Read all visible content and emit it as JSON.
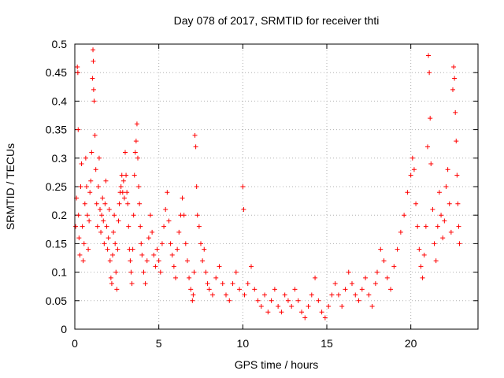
{
  "chart_data": {
    "type": "scatter",
    "title": "Day 078 of 2017, SRMTID for receiver thti",
    "xlabel": "GPS time / hours",
    "ylabel": "SRMTID / TECUs",
    "xlim": [
      0,
      24
    ],
    "ylim": [
      0,
      0.5
    ],
    "xticks": [
      0,
      5,
      10,
      15,
      20
    ],
    "yticks": [
      0,
      0.05,
      0.1,
      0.15,
      0.2,
      0.25,
      0.3,
      0.35,
      0.4,
      0.45,
      0.5
    ],
    "xtick_labels": [
      "0",
      "5",
      "10",
      "15",
      "20"
    ],
    "ytick_labels": [
      "0",
      "0.05",
      "0.1",
      "0.15",
      "0.2",
      "0.25",
      "0.3",
      "0.35",
      "0.4",
      "0.45",
      "0.5"
    ],
    "grid": true,
    "marker": "+",
    "color": "#ff0000",
    "series": [
      {
        "name": "thti",
        "points": [
          [
            0.05,
            0.18
          ],
          [
            0.1,
            0.23
          ],
          [
            0.15,
            0.46
          ],
          [
            0.18,
            0.45
          ],
          [
            0.2,
            0.35
          ],
          [
            0.22,
            0.2
          ],
          [
            0.25,
            0.16
          ],
          [
            0.3,
            0.13
          ],
          [
            0.35,
            0.25
          ],
          [
            0.4,
            0.29
          ],
          [
            0.45,
            0.18
          ],
          [
            0.5,
            0.12
          ],
          [
            0.55,
            0.15
          ],
          [
            0.6,
            0.22
          ],
          [
            0.65,
            0.3
          ],
          [
            0.7,
            0.25
          ],
          [
            0.75,
            0.2
          ],
          [
            0.8,
            0.14
          ],
          [
            0.85,
            0.19
          ],
          [
            0.9,
            0.24
          ],
          [
            0.95,
            0.26
          ],
          [
            1.0,
            0.31
          ],
          [
            1.05,
            0.44
          ],
          [
            1.08,
            0.49
          ],
          [
            1.1,
            0.47
          ],
          [
            1.12,
            0.42
          ],
          [
            1.15,
            0.4
          ],
          [
            1.2,
            0.34
          ],
          [
            1.25,
            0.28
          ],
          [
            1.3,
            0.22
          ],
          [
            1.35,
            0.18
          ],
          [
            1.4,
            0.25
          ],
          [
            1.45,
            0.3
          ],
          [
            1.5,
            0.21
          ],
          [
            1.55,
            0.17
          ],
          [
            1.6,
            0.2
          ],
          [
            1.65,
            0.23
          ],
          [
            1.7,
            0.19
          ],
          [
            1.75,
            0.15
          ],
          [
            1.8,
            0.22
          ],
          [
            1.85,
            0.26
          ],
          [
            1.9,
            0.18
          ],
          [
            1.95,
            0.14
          ],
          [
            2.0,
            0.16
          ],
          [
            2.05,
            0.21
          ],
          [
            2.1,
            0.12
          ],
          [
            2.15,
            0.09
          ],
          [
            2.2,
            0.08
          ],
          [
            2.25,
            0.13
          ],
          [
            2.3,
            0.17
          ],
          [
            2.35,
            0.2
          ],
          [
            2.4,
            0.15
          ],
          [
            2.45,
            0.1
          ],
          [
            2.5,
            0.07
          ],
          [
            2.55,
            0.14
          ],
          [
            2.6,
            0.19
          ],
          [
            2.65,
            0.22
          ],
          [
            2.7,
            0.24
          ],
          [
            2.75,
            0.25
          ],
          [
            2.8,
            0.27
          ],
          [
            2.85,
            0.24
          ],
          [
            2.9,
            0.26
          ],
          [
            2.95,
            0.23
          ],
          [
            3.0,
            0.31
          ],
          [
            3.05,
            0.27
          ],
          [
            3.1,
            0.24
          ],
          [
            3.15,
            0.22
          ],
          [
            3.2,
            0.18
          ],
          [
            3.25,
            0.14
          ],
          [
            3.3,
            0.12
          ],
          [
            3.35,
            0.1
          ],
          [
            3.4,
            0.08
          ],
          [
            3.45,
            0.14
          ],
          [
            3.5,
            0.2
          ],
          [
            3.55,
            0.27
          ],
          [
            3.6,
            0.31
          ],
          [
            3.65,
            0.33
          ],
          [
            3.7,
            0.36
          ],
          [
            3.75,
            0.3
          ],
          [
            3.8,
            0.25
          ],
          [
            3.85,
            0.22
          ],
          [
            3.9,
            0.18
          ],
          [
            3.95,
            0.15
          ],
          [
            4.0,
            0.13
          ],
          [
            4.1,
            0.1
          ],
          [
            4.2,
            0.08
          ],
          [
            4.3,
            0.12
          ],
          [
            4.4,
            0.16
          ],
          [
            4.5,
            0.2
          ],
          [
            4.6,
            0.17
          ],
          [
            4.7,
            0.13
          ],
          [
            4.8,
            0.11
          ],
          [
            4.9,
            0.14
          ],
          [
            5.0,
            0.12
          ],
          [
            5.1,
            0.1
          ],
          [
            5.2,
            0.15
          ],
          [
            5.3,
            0.18
          ],
          [
            5.4,
            0.21
          ],
          [
            5.5,
            0.24
          ],
          [
            5.6,
            0.19
          ],
          [
            5.7,
            0.15
          ],
          [
            5.8,
            0.13
          ],
          [
            5.9,
            0.11
          ],
          [
            6.0,
            0.09
          ],
          [
            6.1,
            0.14
          ],
          [
            6.2,
            0.17
          ],
          [
            6.3,
            0.2
          ],
          [
            6.4,
            0.23
          ],
          [
            6.5,
            0.2
          ],
          [
            6.6,
            0.15
          ],
          [
            6.7,
            0.12
          ],
          [
            6.8,
            0.09
          ],
          [
            6.9,
            0.07
          ],
          [
            7.0,
            0.05
          ],
          [
            7.05,
            0.06
          ],
          [
            7.1,
            0.1
          ],
          [
            7.15,
            0.34
          ],
          [
            7.2,
            0.32
          ],
          [
            7.25,
            0.25
          ],
          [
            7.3,
            0.2
          ],
          [
            7.4,
            0.18
          ],
          [
            7.5,
            0.15
          ],
          [
            7.6,
            0.12
          ],
          [
            7.7,
            0.14
          ],
          [
            7.8,
            0.1
          ],
          [
            7.9,
            0.08
          ],
          [
            8.0,
            0.07
          ],
          [
            8.2,
            0.06
          ],
          [
            8.4,
            0.09
          ],
          [
            8.6,
            0.11
          ],
          [
            8.8,
            0.08
          ],
          [
            9.0,
            0.06
          ],
          [
            9.2,
            0.05
          ],
          [
            9.4,
            0.08
          ],
          [
            9.6,
            0.1
          ],
          [
            9.8,
            0.07
          ],
          [
            10.0,
            0.25
          ],
          [
            10.05,
            0.21
          ],
          [
            10.1,
            0.06
          ],
          [
            10.3,
            0.08
          ],
          [
            10.5,
            0.11
          ],
          [
            10.7,
            0.07
          ],
          [
            10.9,
            0.05
          ],
          [
            11.1,
            0.04
          ],
          [
            11.3,
            0.06
          ],
          [
            11.5,
            0.03
          ],
          [
            11.7,
            0.05
          ],
          [
            11.9,
            0.07
          ],
          [
            12.1,
            0.04
          ],
          [
            12.3,
            0.03
          ],
          [
            12.5,
            0.06
          ],
          [
            12.7,
            0.05
          ],
          [
            12.9,
            0.04
          ],
          [
            13.1,
            0.07
          ],
          [
            13.3,
            0.05
          ],
          [
            13.5,
            0.03
          ],
          [
            13.7,
            0.02
          ],
          [
            13.9,
            0.04
          ],
          [
            14.1,
            0.06
          ],
          [
            14.3,
            0.09
          ],
          [
            14.5,
            0.05
          ],
          [
            14.7,
            0.03
          ],
          [
            14.9,
            0.02
          ],
          [
            15.1,
            0.04
          ],
          [
            15.3,
            0.06
          ],
          [
            15.5,
            0.08
          ],
          [
            15.7,
            0.06
          ],
          [
            15.9,
            0.04
          ],
          [
            16.1,
            0.07
          ],
          [
            16.3,
            0.1
          ],
          [
            16.5,
            0.08
          ],
          [
            16.7,
            0.06
          ],
          [
            16.9,
            0.05
          ],
          [
            17.1,
            0.07
          ],
          [
            17.3,
            0.09
          ],
          [
            17.5,
            0.06
          ],
          [
            17.7,
            0.04
          ],
          [
            17.9,
            0.08
          ],
          [
            18.0,
            0.1
          ],
          [
            18.2,
            0.14
          ],
          [
            18.4,
            0.12
          ],
          [
            18.6,
            0.09
          ],
          [
            18.8,
            0.07
          ],
          [
            19.0,
            0.11
          ],
          [
            19.2,
            0.14
          ],
          [
            19.4,
            0.17
          ],
          [
            19.6,
            0.2
          ],
          [
            19.8,
            0.24
          ],
          [
            20.0,
            0.27
          ],
          [
            20.1,
            0.3
          ],
          [
            20.2,
            0.28
          ],
          [
            20.3,
            0.22
          ],
          [
            20.4,
            0.18
          ],
          [
            20.5,
            0.14
          ],
          [
            20.6,
            0.11
          ],
          [
            20.7,
            0.09
          ],
          [
            20.8,
            0.13
          ],
          [
            20.9,
            0.18
          ],
          [
            21.0,
            0.32
          ],
          [
            21.05,
            0.48
          ],
          [
            21.1,
            0.45
          ],
          [
            21.15,
            0.37
          ],
          [
            21.2,
            0.29
          ],
          [
            21.3,
            0.21
          ],
          [
            21.4,
            0.15
          ],
          [
            21.5,
            0.12
          ],
          [
            21.6,
            0.18
          ],
          [
            21.7,
            0.24
          ],
          [
            21.8,
            0.2
          ],
          [
            21.9,
            0.16
          ],
          [
            22.0,
            0.19
          ],
          [
            22.1,
            0.25
          ],
          [
            22.2,
            0.28
          ],
          [
            22.3,
            0.22
          ],
          [
            22.4,
            0.17
          ],
          [
            22.5,
            0.42
          ],
          [
            22.55,
            0.46
          ],
          [
            22.6,
            0.44
          ],
          [
            22.65,
            0.38
          ],
          [
            22.7,
            0.33
          ],
          [
            22.75,
            0.27
          ],
          [
            22.8,
            0.22
          ],
          [
            22.85,
            0.18
          ],
          [
            22.9,
            0.15
          ]
        ]
      }
    ]
  }
}
